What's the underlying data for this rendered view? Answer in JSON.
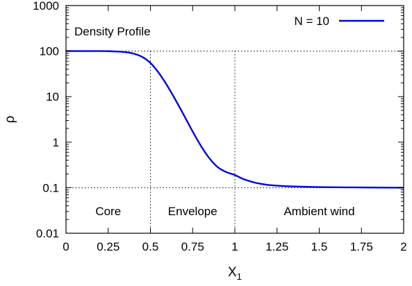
{
  "chart_data": {
    "type": "line",
    "xlabel": "X",
    "xlabel_sub": "1",
    "ylabel": "ρ",
    "xlim": [
      0,
      2
    ],
    "ylim": [
      0.01,
      1000
    ],
    "yscale": "log",
    "x_ticks": [
      "0",
      "0.25",
      "0.5",
      "0.75",
      "1",
      "1.25",
      "1.5",
      "1.75",
      "2"
    ],
    "y_ticks": [
      "0.01",
      "0.1",
      "1",
      "10",
      "100",
      "1000"
    ],
    "legend_position": "top-right",
    "grid": false,
    "series": [
      {
        "name": "N = 10",
        "color": "#0000dd",
        "x": [
          0,
          0.1,
          0.2,
          0.25,
          0.3,
          0.35,
          0.4,
          0.45,
          0.5,
          0.55,
          0.6,
          0.65,
          0.7,
          0.75,
          0.8,
          0.85,
          0.9,
          0.95,
          1.0,
          1.05,
          1.1,
          1.15,
          1.2,
          1.25,
          1.3,
          1.4,
          1.5,
          1.6,
          1.7,
          1.8,
          1.9,
          2.0
        ],
        "y": [
          100,
          100,
          100,
          99.5,
          98,
          95,
          88,
          75,
          55,
          33,
          17.3,
          8.3,
          3.8,
          1.72,
          0.82,
          0.44,
          0.28,
          0.22,
          0.19,
          0.155,
          0.135,
          0.122,
          0.115,
          0.111,
          0.108,
          0.105,
          0.103,
          0.102,
          0.1015,
          0.101,
          0.1005,
          0.1
        ]
      }
    ],
    "annotations": {
      "title": "Density Profile",
      "regions": [
        "Core",
        "Envelope",
        "Ambient wind"
      ]
    }
  }
}
